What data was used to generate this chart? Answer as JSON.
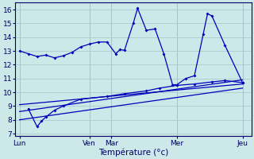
{
  "xlabel": "Température (°c)",
  "background_color": "#cce8e8",
  "grid_color": "#aacccc",
  "line_color": "#0000bb",
  "ylim": [
    6.8,
    16.5
  ],
  "yticks": [
    7,
    8,
    9,
    10,
    11,
    12,
    13,
    14,
    15,
    16
  ],
  "xlim": [
    0,
    27
  ],
  "x_day_labels": [
    "Lun",
    "Ven",
    "Mar",
    "Mer",
    "Jeu"
  ],
  "x_day_positions": [
    0.5,
    8.5,
    11.0,
    18.5,
    26.0
  ],
  "x_vline_positions": [
    0.5,
    8.5,
    11.0,
    18.5,
    26.0
  ],
  "line1_x": [
    0.5,
    1.5,
    2.5,
    3.5,
    4.5,
    5.5,
    6.5,
    7.5,
    8.5,
    9.5,
    10.5,
    11.5,
    12.0,
    12.5,
    13.5,
    14.0,
    15.0,
    16.0,
    17.0,
    18.0,
    18.5,
    19.5,
    20.5,
    21.5,
    22.0,
    22.5,
    24.0,
    26.0
  ],
  "line1_y": [
    13.0,
    12.8,
    12.6,
    12.7,
    12.5,
    12.65,
    12.9,
    13.3,
    13.5,
    13.65,
    13.65,
    12.8,
    13.1,
    13.05,
    15.0,
    16.1,
    14.5,
    14.6,
    12.8,
    10.55,
    10.55,
    11.0,
    11.2,
    14.2,
    15.7,
    15.55,
    13.4,
    10.7
  ],
  "line2_x": [
    1.5,
    2.5,
    3.0,
    3.5,
    4.5,
    5.5,
    7.5,
    10.5,
    12.5,
    15.0,
    16.5,
    18.5,
    20.5,
    22.5,
    24.0,
    26.0
  ],
  "line2_y": [
    8.8,
    7.5,
    7.9,
    8.2,
    8.7,
    9.0,
    9.5,
    9.7,
    9.9,
    10.1,
    10.3,
    10.5,
    10.6,
    10.75,
    10.85,
    10.7
  ],
  "line3_x": [
    0.5,
    26.0
  ],
  "line3_y": [
    9.1,
    10.6
  ],
  "line4_x": [
    0.5,
    26.0
  ],
  "line4_y": [
    8.6,
    10.9
  ],
  "line5_x": [
    0.5,
    26.0
  ],
  "line5_y": [
    8.0,
    10.3
  ]
}
